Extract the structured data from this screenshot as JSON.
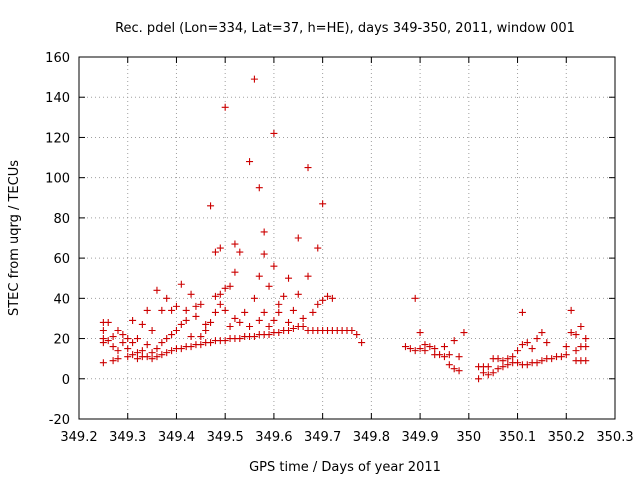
{
  "chart_data": {
    "type": "scatter",
    "title": "Rec. pdel (Lon=334, Lat=37, h=HE), days 349-350, 2011, window 001",
    "xlabel": "GPS time / Days of year 2011",
    "ylabel": "STEC from uqrg / TECUs",
    "xlim": [
      349.2,
      350.3
    ],
    "ylim": [
      -20,
      160
    ],
    "xticks": [
      "349.2",
      "349.3",
      "349.4",
      "349.5",
      "349.6",
      "349.7",
      "349.8",
      "349.9",
      "350",
      "350.1",
      "350.2",
      "350.3"
    ],
    "yticks": [
      "-20",
      "0",
      "20",
      "40",
      "60",
      "80",
      "100",
      "120",
      "140",
      "160"
    ],
    "grid": true,
    "marker": "+",
    "color": "#cc0000",
    "series": [
      {
        "points": [
          [
            349.25,
            8
          ],
          [
            349.25,
            18
          ],
          [
            349.25,
            20
          ],
          [
            349.25,
            24
          ],
          [
            349.25,
            28
          ],
          [
            349.26,
            19
          ],
          [
            349.26,
            28
          ],
          [
            349.27,
            9
          ],
          [
            349.27,
            16
          ],
          [
            349.27,
            21
          ],
          [
            349.28,
            10
          ],
          [
            349.28,
            14
          ],
          [
            349.28,
            24
          ],
          [
            349.29,
            18
          ],
          [
            349.29,
            22
          ],
          [
            349.3,
            11
          ],
          [
            349.3,
            15
          ],
          [
            349.3,
            20
          ],
          [
            349.31,
            12
          ],
          [
            349.31,
            18
          ],
          [
            349.31,
            29
          ],
          [
            349.32,
            10
          ],
          [
            349.32,
            13
          ],
          [
            349.32,
            20
          ],
          [
            349.33,
            11
          ],
          [
            349.33,
            14
          ],
          [
            349.33,
            27
          ],
          [
            349.34,
            11
          ],
          [
            349.34,
            17
          ],
          [
            349.34,
            34
          ],
          [
            349.35,
            10
          ],
          [
            349.35,
            13
          ],
          [
            349.35,
            24
          ],
          [
            349.36,
            11
          ],
          [
            349.36,
            15
          ],
          [
            349.36,
            44
          ],
          [
            349.37,
            12
          ],
          [
            349.37,
            18
          ],
          [
            349.37,
            34
          ],
          [
            349.38,
            13
          ],
          [
            349.38,
            20
          ],
          [
            349.38,
            40
          ],
          [
            349.39,
            14
          ],
          [
            349.39,
            22
          ],
          [
            349.39,
            34
          ],
          [
            349.4,
            15
          ],
          [
            349.4,
            24
          ],
          [
            349.4,
            36
          ],
          [
            349.41,
            15
          ],
          [
            349.41,
            27
          ],
          [
            349.41,
            47
          ],
          [
            349.42,
            16
          ],
          [
            349.42,
            29
          ],
          [
            349.42,
            34
          ],
          [
            349.43,
            16
          ],
          [
            349.43,
            21
          ],
          [
            349.43,
            42
          ],
          [
            349.44,
            17
          ],
          [
            349.44,
            31
          ],
          [
            349.44,
            36
          ],
          [
            349.45,
            17
          ],
          [
            349.45,
            21
          ],
          [
            349.45,
            37
          ],
          [
            349.46,
            18
          ],
          [
            349.46,
            24
          ],
          [
            349.46,
            27
          ],
          [
            349.47,
            18
          ],
          [
            349.47,
            28
          ],
          [
            349.47,
            86
          ],
          [
            349.48,
            19
          ],
          [
            349.48,
            33
          ],
          [
            349.48,
            41
          ],
          [
            349.48,
            63
          ],
          [
            349.49,
            19
          ],
          [
            349.49,
            37
          ],
          [
            349.49,
            42
          ],
          [
            349.49,
            65
          ],
          [
            349.5,
            19
          ],
          [
            349.5,
            34
          ],
          [
            349.5,
            45
          ],
          [
            349.5,
            135
          ],
          [
            349.51,
            20
          ],
          [
            349.51,
            26
          ],
          [
            349.51,
            46
          ],
          [
            349.52,
            20
          ],
          [
            349.52,
            30
          ],
          [
            349.52,
            53
          ],
          [
            349.52,
            67
          ],
          [
            349.53,
            20
          ],
          [
            349.53,
            28
          ],
          [
            349.53,
            63
          ],
          [
            349.54,
            21
          ],
          [
            349.54,
            33
          ],
          [
            349.55,
            21
          ],
          [
            349.55,
            26
          ],
          [
            349.55,
            108
          ],
          [
            349.56,
            21
          ],
          [
            349.56,
            40
          ],
          [
            349.56,
            149
          ],
          [
            349.57,
            22
          ],
          [
            349.57,
            29
          ],
          [
            349.57,
            51
          ],
          [
            349.57,
            95
          ],
          [
            349.58,
            22
          ],
          [
            349.58,
            33
          ],
          [
            349.58,
            62
          ],
          [
            349.58,
            73
          ],
          [
            349.59,
            22
          ],
          [
            349.59,
            26
          ],
          [
            349.59,
            46
          ],
          [
            349.6,
            23
          ],
          [
            349.6,
            29
          ],
          [
            349.6,
            56
          ],
          [
            349.6,
            122
          ],
          [
            349.61,
            23
          ],
          [
            349.61,
            33
          ],
          [
            349.61,
            37
          ],
          [
            349.62,
            24
          ],
          [
            349.62,
            41
          ],
          [
            349.63,
            24
          ],
          [
            349.63,
            28
          ],
          [
            349.63,
            50
          ],
          [
            349.64,
            25
          ],
          [
            349.64,
            34
          ],
          [
            349.65,
            26
          ],
          [
            349.65,
            42
          ],
          [
            349.65,
            70
          ],
          [
            349.66,
            26
          ],
          [
            349.66,
            30
          ],
          [
            349.67,
            24
          ],
          [
            349.67,
            51
          ],
          [
            349.67,
            105
          ],
          [
            349.68,
            24
          ],
          [
            349.68,
            33
          ],
          [
            349.69,
            24
          ],
          [
            349.69,
            37
          ],
          [
            349.69,
            65
          ],
          [
            349.7,
            24
          ],
          [
            349.7,
            39
          ],
          [
            349.7,
            87
          ],
          [
            349.71,
            24
          ],
          [
            349.71,
            41
          ],
          [
            349.72,
            24
          ],
          [
            349.72,
            40
          ],
          [
            349.73,
            24
          ],
          [
            349.74,
            24
          ],
          [
            349.75,
            24
          ],
          [
            349.76,
            24
          ],
          [
            349.77,
            22
          ],
          [
            349.78,
            18
          ],
          [
            349.87,
            16
          ],
          [
            349.88,
            15
          ],
          [
            349.89,
            14
          ],
          [
            349.89,
            40
          ],
          [
            349.9,
            15
          ],
          [
            349.9,
            23
          ],
          [
            349.91,
            14
          ],
          [
            349.91,
            17
          ],
          [
            349.92,
            16
          ],
          [
            349.93,
            12
          ],
          [
            349.93,
            15
          ],
          [
            349.94,
            12
          ],
          [
            349.95,
            11
          ],
          [
            349.95,
            16
          ],
          [
            349.96,
            7
          ],
          [
            349.96,
            12
          ],
          [
            349.97,
            5
          ],
          [
            349.97,
            19
          ],
          [
            349.98,
            4
          ],
          [
            349.98,
            11
          ],
          [
            349.99,
            23
          ],
          [
            350.02,
            0
          ],
          [
            350.02,
            6
          ],
          [
            350.03,
            3
          ],
          [
            350.03,
            6
          ],
          [
            350.04,
            2
          ],
          [
            350.04,
            6
          ],
          [
            350.05,
            3
          ],
          [
            350.05,
            10
          ],
          [
            350.06,
            5
          ],
          [
            350.06,
            10
          ],
          [
            350.07,
            6
          ],
          [
            350.07,
            9
          ],
          [
            350.08,
            7
          ],
          [
            350.08,
            10
          ],
          [
            350.09,
            8
          ],
          [
            350.09,
            11
          ],
          [
            350.1,
            8
          ],
          [
            350.1,
            14
          ],
          [
            350.11,
            7
          ],
          [
            350.11,
            17
          ],
          [
            350.11,
            33
          ],
          [
            350.12,
            7
          ],
          [
            350.12,
            18
          ],
          [
            350.13,
            8
          ],
          [
            350.13,
            15
          ],
          [
            350.14,
            8
          ],
          [
            350.14,
            20
          ],
          [
            350.15,
            9
          ],
          [
            350.15,
            23
          ],
          [
            350.16,
            10
          ],
          [
            350.16,
            18
          ],
          [
            350.17,
            10
          ],
          [
            350.18,
            11
          ],
          [
            350.19,
            11
          ],
          [
            350.2,
            12
          ],
          [
            350.2,
            16
          ],
          [
            350.21,
            23
          ],
          [
            350.21,
            34
          ],
          [
            350.22,
            9
          ],
          [
            350.22,
            14
          ],
          [
            350.22,
            22
          ],
          [
            350.23,
            9
          ],
          [
            350.23,
            16
          ],
          [
            350.23,
            26
          ],
          [
            350.24,
            9
          ],
          [
            350.24,
            16
          ],
          [
            350.24,
            20
          ]
        ]
      }
    ]
  }
}
